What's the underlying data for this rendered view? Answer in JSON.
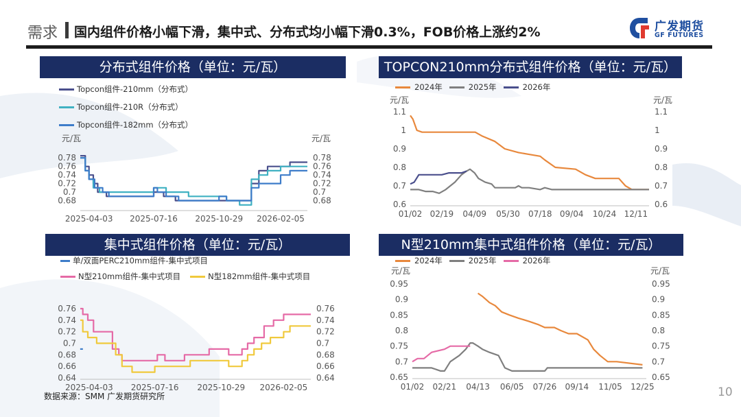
{
  "header": {
    "section": "需求",
    "title": "国内组件价格小幅下滑，集中式、分布式均小幅下滑0.3%，FOB价格上涨约2%"
  },
  "logo": {
    "cn": "广发期货",
    "en": "GF FUTURES"
  },
  "colors": {
    "navy": "#1b2d63",
    "brand": "#1f4fa0",
    "orange": "#e8883c",
    "gray": "#7f7f7f",
    "purple": "#4a4f8c",
    "pink": "#e56aa6"
  },
  "footer": {
    "source": "数据来源：SMM 广发期货研究所",
    "page": "10"
  },
  "charts": {
    "c1": {
      "title": "分布式组件价格（单位：元/瓦）",
      "legend": [
        "Topcon组件-210mm（分布式）",
        "Topcon组件-210R（分布式）",
        "Topcon组件-182mm（分布式）"
      ]
    },
    "c2": {
      "title": "TOPCON210mm分布式组件价格（单位：元/瓦）",
      "legend": [
        "2024年",
        "2025年",
        "2026年"
      ]
    },
    "c3": {
      "title": "集中式组件价格（单位：元/瓦）",
      "legend": [
        "单/双面PERC210mm组件-集中式项目",
        "N型210mm组件-集中式项目",
        "N型182mm组件-集中式项目"
      ]
    },
    "c4": {
      "title": "N型210mm集中式组件价格（单位：元/瓦）",
      "legend": [
        "2024年",
        "2025年",
        "2026年"
      ]
    }
  },
  "chart_data": [
    {
      "type": "line",
      "title": "分布式组件价格（单位：元/瓦）",
      "ylabel": "元/瓦",
      "ylabel_right": "元/瓦",
      "ylim": [
        0.66,
        0.79
      ],
      "yticks": [
        0.68,
        0.7,
        0.72,
        0.74,
        0.76,
        0.78
      ],
      "x_range": [
        "2025-03-20",
        "2026-03-20"
      ],
      "xticks": [
        "2025-04-03",
        "2025-07-16",
        "2025-10-29",
        "2026-02-05"
      ],
      "grid": false,
      "series": [
        {
          "name": "Topcon组件-210mm（分布式）",
          "color": "#4a4f8c",
          "x": [
            "2025-03-20",
            "2025-03-28",
            "2025-04-03",
            "2025-04-10",
            "2025-04-17",
            "2025-05-01",
            "2025-06-15",
            "2025-07-01",
            "2025-07-16",
            "2025-07-20",
            "2025-08-01",
            "2025-08-15",
            "2025-08-20",
            "2025-09-01",
            "2025-10-01",
            "2025-10-29",
            "2025-11-15",
            "2025-12-01",
            "2025-12-10",
            "2025-12-20",
            "2026-01-01",
            "2026-01-15",
            "2026-02-05",
            "2026-02-20",
            "2026-03-20"
          ],
          "y": [
            0.785,
            0.76,
            0.74,
            0.72,
            0.7,
            0.69,
            0.69,
            0.69,
            0.7,
            0.7,
            0.69,
            0.69,
            0.68,
            0.68,
            0.68,
            0.68,
            0.68,
            0.68,
            0.68,
            0.72,
            0.75,
            0.76,
            0.76,
            0.77,
            0.77
          ]
        },
        {
          "name": "Topcon组件-210R（分布式）",
          "color": "#3fb1c2",
          "x": [
            "2025-03-20",
            "2025-03-28",
            "2025-04-03",
            "2025-04-10",
            "2025-04-20",
            "2025-05-01",
            "2025-06-01",
            "2025-07-01",
            "2025-07-16",
            "2025-07-25",
            "2025-08-05",
            "2025-08-25",
            "2025-09-10",
            "2025-10-10",
            "2025-11-10",
            "2025-12-01",
            "2025-12-10",
            "2025-12-20",
            "2026-01-01",
            "2026-01-15",
            "2026-02-05",
            "2026-03-20"
          ],
          "y": [
            0.78,
            0.75,
            0.73,
            0.71,
            0.7,
            0.7,
            0.7,
            0.7,
            0.71,
            0.71,
            0.7,
            0.7,
            0.69,
            0.69,
            0.68,
            0.67,
            0.67,
            0.73,
            0.74,
            0.75,
            0.76,
            0.76
          ]
        },
        {
          "name": "Topcon组件-182mm（分布式）",
          "color": "#3d7cc9",
          "x": [
            "2025-03-20",
            "2025-03-28",
            "2025-04-03",
            "2025-04-12",
            "2025-04-25",
            "2025-05-05",
            "2025-06-15",
            "2025-07-01",
            "2025-07-16",
            "2025-07-22",
            "2025-08-05",
            "2025-08-15",
            "2025-08-25",
            "2025-10-05",
            "2025-10-29",
            "2025-11-10",
            "2025-12-01",
            "2025-12-10",
            "2025-12-20",
            "2026-01-01",
            "2026-01-20",
            "2026-02-05",
            "2026-02-20",
            "2026-03-20"
          ],
          "y": [
            0.78,
            0.75,
            0.73,
            0.71,
            0.7,
            0.69,
            0.69,
            0.69,
            0.71,
            0.7,
            0.69,
            0.69,
            0.68,
            0.68,
            0.69,
            0.68,
            0.68,
            0.68,
            0.71,
            0.72,
            0.72,
            0.74,
            0.75,
            0.75
          ]
        }
      ]
    },
    {
      "type": "line",
      "title": "TOPCON210mm分布式组件价格（单位：元/瓦）",
      "ylabel": "元/瓦",
      "ylabel_right": "元/瓦",
      "ylim": [
        0.6,
        1.1
      ],
      "yticks": [
        0.6,
        0.7,
        0.8,
        0.9,
        1.0,
        1.1
      ],
      "ytick_labels": [
        "0.6",
        "0.7",
        "0.8",
        "0.9",
        "1",
        "1.1"
      ],
      "x_range": [
        "01/02",
        "12/31"
      ],
      "xticks": [
        "01/02",
        "02/19",
        "04/09",
        "05/30",
        "07/18",
        "09/04",
        "10/24",
        "12/11"
      ],
      "grid": false,
      "series": [
        {
          "name": "2024年",
          "color": "#e8883c",
          "x": [
            "01/02",
            "01/06",
            "01/12",
            "01/20",
            "03/01",
            "04/10",
            "04/20",
            "05/10",
            "05/25",
            "06/15",
            "07/01",
            "07/18",
            "07/25",
            "08/10",
            "09/10",
            "09/25",
            "10/10",
            "11/15",
            "11/25",
            "12/05",
            "12/31"
          ],
          "y": [
            1.08,
            1.06,
            1.0,
            0.99,
            0.99,
            0.99,
            0.97,
            0.94,
            0.9,
            0.88,
            0.87,
            0.86,
            0.84,
            0.8,
            0.79,
            0.76,
            0.74,
            0.74,
            0.7,
            0.68,
            0.68
          ]
        },
        {
          "name": "2025年",
          "color": "#7f7f7f",
          "x": [
            "01/02",
            "01/15",
            "01/25",
            "02/05",
            "02/15",
            "02/25",
            "03/10",
            "03/20",
            "03/28",
            "04/02",
            "04/09",
            "04/15",
            "04/25",
            "05/05",
            "05/10",
            "05/30",
            "06/10",
            "06/15",
            "06/20",
            "07/01",
            "07/18",
            "07/25",
            "08/05",
            "12/31"
          ],
          "y": [
            0.68,
            0.68,
            0.67,
            0.67,
            0.66,
            0.68,
            0.72,
            0.76,
            0.78,
            0.79,
            0.77,
            0.74,
            0.72,
            0.71,
            0.69,
            0.69,
            0.69,
            0.7,
            0.69,
            0.69,
            0.68,
            0.69,
            0.68,
            0.68
          ]
        },
        {
          "name": "2026年",
          "color": "#4a4f8c",
          "x": [
            "01/02",
            "01/08",
            "01/15",
            "02/01",
            "02/19",
            "03/01",
            "03/20",
            "03/28"
          ],
          "y": [
            0.71,
            0.72,
            0.76,
            0.76,
            0.76,
            0.77,
            0.77,
            0.78
          ]
        }
      ]
    },
    {
      "type": "line",
      "title": "集中式组件价格（单位：元/瓦）",
      "ylabel": "",
      "ylabel_right": "",
      "ylim": [
        0.64,
        0.76
      ],
      "yticks": [
        0.64,
        0.66,
        0.68,
        0.7,
        0.72,
        0.74,
        0.76
      ],
      "x_range": [
        "2025-03-20",
        "2026-03-20"
      ],
      "xticks": [
        "2025-04-03",
        "2025-07-16",
        "2025-10-29",
        "2026-02-05"
      ],
      "grid": false,
      "series": [
        {
          "name": "单/双面PERC210mm组件-集中式项目",
          "color": "#3d7cc9",
          "x": [
            "2025-03-22"
          ],
          "y": [
            0.69
          ]
        },
        {
          "name": "N型210mm组件-集中式项目",
          "color": "#e56aa6",
          "x": [
            "2025-03-20",
            "2025-03-24",
            "2025-04-01",
            "2025-04-10",
            "2025-04-20",
            "2025-05-10",
            "2025-05-20",
            "2025-05-25",
            "2025-06-25",
            "2025-07-05",
            "2025-07-20",
            "2025-08-01",
            "2025-08-10",
            "2025-08-20",
            "2025-09-01",
            "2025-09-10",
            "2025-10-01",
            "2025-10-10",
            "2025-11-01",
            "2025-11-10",
            "2025-11-20",
            "2025-12-01",
            "2025-12-10",
            "2025-12-20",
            "2026-01-05",
            "2026-01-20",
            "2026-02-05",
            "2026-03-20"
          ],
          "y": [
            0.76,
            0.75,
            0.74,
            0.72,
            0.72,
            0.69,
            0.68,
            0.67,
            0.67,
            0.67,
            0.68,
            0.67,
            0.67,
            0.67,
            0.68,
            0.68,
            0.68,
            0.69,
            0.69,
            0.68,
            0.68,
            0.69,
            0.7,
            0.71,
            0.73,
            0.74,
            0.75,
            0.75
          ]
        },
        {
          "name": "N型182mm组件-集中式项目",
          "color": "#f0c93c",
          "x": [
            "2025-03-20",
            "2025-03-24",
            "2025-04-01",
            "2025-04-15",
            "2025-05-01",
            "2025-05-15",
            "2025-05-25",
            "2025-06-10",
            "2025-06-20",
            "2025-07-01",
            "2025-07-16",
            "2025-07-20",
            "2025-08-01",
            "2025-09-01",
            "2025-09-10",
            "2025-10-29",
            "2025-11-10",
            "2025-11-20",
            "2025-12-01",
            "2025-12-10",
            "2025-12-20",
            "2026-01-01",
            "2026-01-15",
            "2026-02-05",
            "2026-02-15",
            "2026-03-20"
          ],
          "y": [
            0.74,
            0.72,
            0.71,
            0.7,
            0.7,
            0.68,
            0.66,
            0.65,
            0.65,
            0.65,
            0.66,
            0.66,
            0.66,
            0.66,
            0.67,
            0.67,
            0.66,
            0.66,
            0.67,
            0.68,
            0.69,
            0.7,
            0.71,
            0.72,
            0.73,
            0.73
          ]
        }
      ]
    },
    {
      "type": "line",
      "title": "N型210mm集中式组件价格（单位：元/瓦）",
      "ylabel": "元/瓦",
      "ylabel_right": "元/瓦",
      "ylim": [
        0.65,
        0.95
      ],
      "yticks": [
        0.65,
        0.7,
        0.75,
        0.8,
        0.85,
        0.9,
        0.95
      ],
      "x_range": [
        "01/02",
        "12/31"
      ],
      "xticks": [
        "01/02",
        "02/21",
        "04/13",
        "06/05",
        "07/26",
        "09/14",
        "11/05",
        "12/25"
      ],
      "grid": false,
      "series": [
        {
          "name": "2024年",
          "color": "#e8883c",
          "x": [
            "04/13",
            "04/20",
            "05/01",
            "05/10",
            "05/20",
            "06/01",
            "06/15",
            "07/01",
            "07/15",
            "07/26",
            "08/10",
            "08/20",
            "09/01",
            "09/14",
            "10/01",
            "10/10",
            "10/20",
            "11/01",
            "11/15",
            "12/25"
          ],
          "y": [
            0.92,
            0.91,
            0.89,
            0.88,
            0.86,
            0.85,
            0.84,
            0.83,
            0.82,
            0.81,
            0.81,
            0.8,
            0.79,
            0.79,
            0.77,
            0.74,
            0.72,
            0.7,
            0.7,
            0.69
          ]
        },
        {
          "name": "2025年",
          "color": "#7f7f7f",
          "x": [
            "01/02",
            "01/20",
            "02/01",
            "02/15",
            "02/21",
            "03/01",
            "03/15",
            "03/25",
            "04/01",
            "04/05",
            "04/13",
            "04/20",
            "05/01",
            "05/15",
            "05/25",
            "06/05",
            "06/20",
            "07/26",
            "07/30",
            "08/10",
            "09/14",
            "11/05",
            "11/20",
            "12/25"
          ],
          "y": [
            0.68,
            0.68,
            0.68,
            0.67,
            0.67,
            0.7,
            0.72,
            0.74,
            0.76,
            0.76,
            0.75,
            0.74,
            0.73,
            0.72,
            0.68,
            0.67,
            0.67,
            0.67,
            0.68,
            0.68,
            0.68,
            0.68,
            0.68,
            0.68
          ]
        },
        {
          "name": "2026年",
          "color": "#e56aa6",
          "x": [
            "01/02",
            "01/10",
            "01/20",
            "02/01",
            "02/21",
            "03/01",
            "03/20",
            "04/01"
          ],
          "y": [
            0.7,
            0.71,
            0.71,
            0.73,
            0.74,
            0.75,
            0.75,
            0.75
          ]
        }
      ]
    }
  ]
}
